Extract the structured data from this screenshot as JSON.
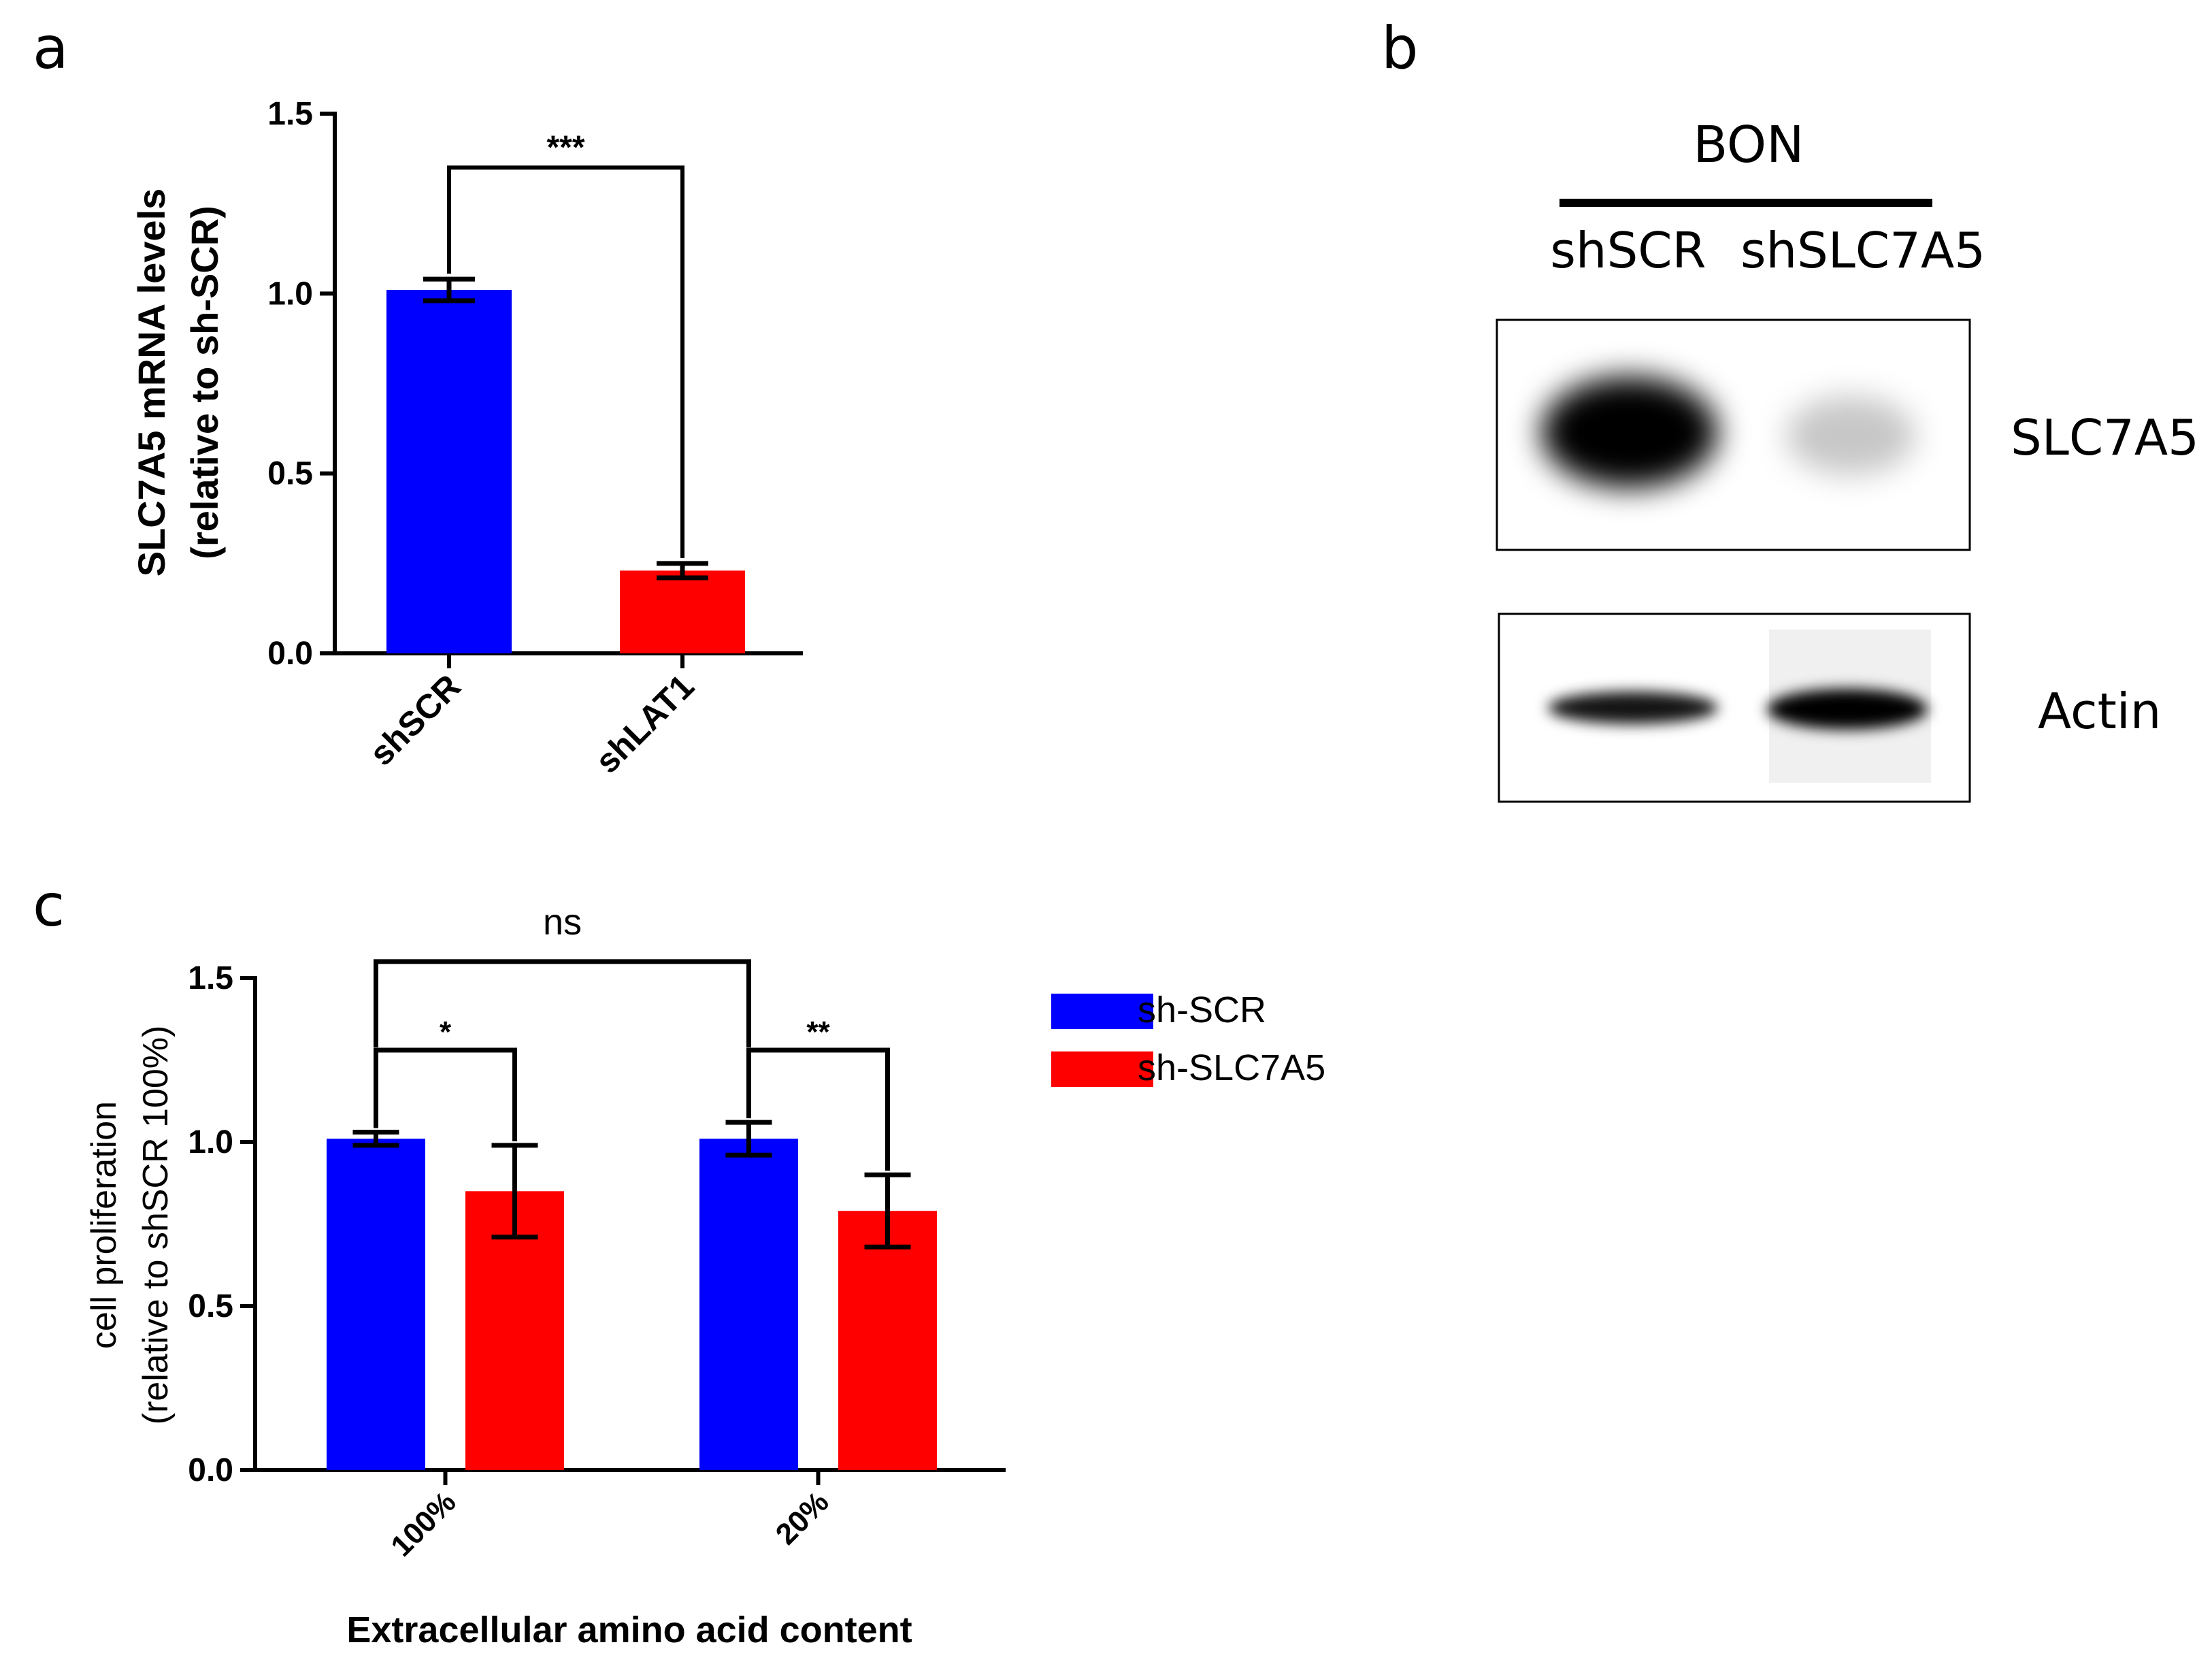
{
  "panels": {
    "a": {
      "letter": "a"
    },
    "b": {
      "letter": "b",
      "cell_line": "BON",
      "lanes": [
        "shSCR",
        "shSLC7A5"
      ],
      "blots": [
        {
          "label": "SLC7A5",
          "band_intensity": [
            1.0,
            0.22
          ]
        },
        {
          "label": "Actin",
          "band_intensity": [
            0.92,
            1.0
          ]
        }
      ]
    },
    "c": {
      "letter": "c"
    }
  },
  "colors": {
    "blue": "#0000ff",
    "red": "#ff0000",
    "black": "#000000"
  },
  "chart_data": [
    {
      "panel": "a",
      "type": "bar",
      "categories": [
        "shSCR",
        "shLAT1"
      ],
      "values": [
        1.01,
        0.23
      ],
      "errors": [
        0.03,
        0.02
      ],
      "bar_colors": [
        "#0000ff",
        "#ff0000"
      ],
      "ylabel": [
        "SLC7A5 mRNA levels",
        "(relative to sh-SCR)"
      ],
      "xlabel": "",
      "ylim": [
        0,
        1.5
      ],
      "yticks": [
        "0.0",
        "0.5",
        "1.0",
        "1.5"
      ],
      "grid": false,
      "significance": [
        {
          "from": 0,
          "to": 1,
          "label": "***"
        }
      ]
    },
    {
      "panel": "c",
      "type": "bar",
      "categories": [
        "100%",
        "20%"
      ],
      "series": [
        {
          "name": "sh-SCR",
          "color": "#0000ff",
          "values": [
            1.01,
            1.01
          ],
          "errors": [
            0.02,
            0.05
          ]
        },
        {
          "name": "sh-SLC7A5",
          "color": "#ff0000",
          "values": [
            0.85,
            0.79
          ],
          "errors": [
            0.14,
            0.11
          ]
        }
      ],
      "ylabel": [
        "cell proliferation",
        "(relative to shSCR 100%)"
      ],
      "xlabel": "Extracellular amino acid content",
      "ylim": [
        0,
        1.5
      ],
      "yticks": [
        "0.0",
        "0.5",
        "1.0",
        "1.5"
      ],
      "grid": false,
      "legend": "right",
      "significance": [
        {
          "label": "*"
        },
        {
          "label": "**"
        },
        {
          "label": "ns"
        }
      ]
    }
  ]
}
